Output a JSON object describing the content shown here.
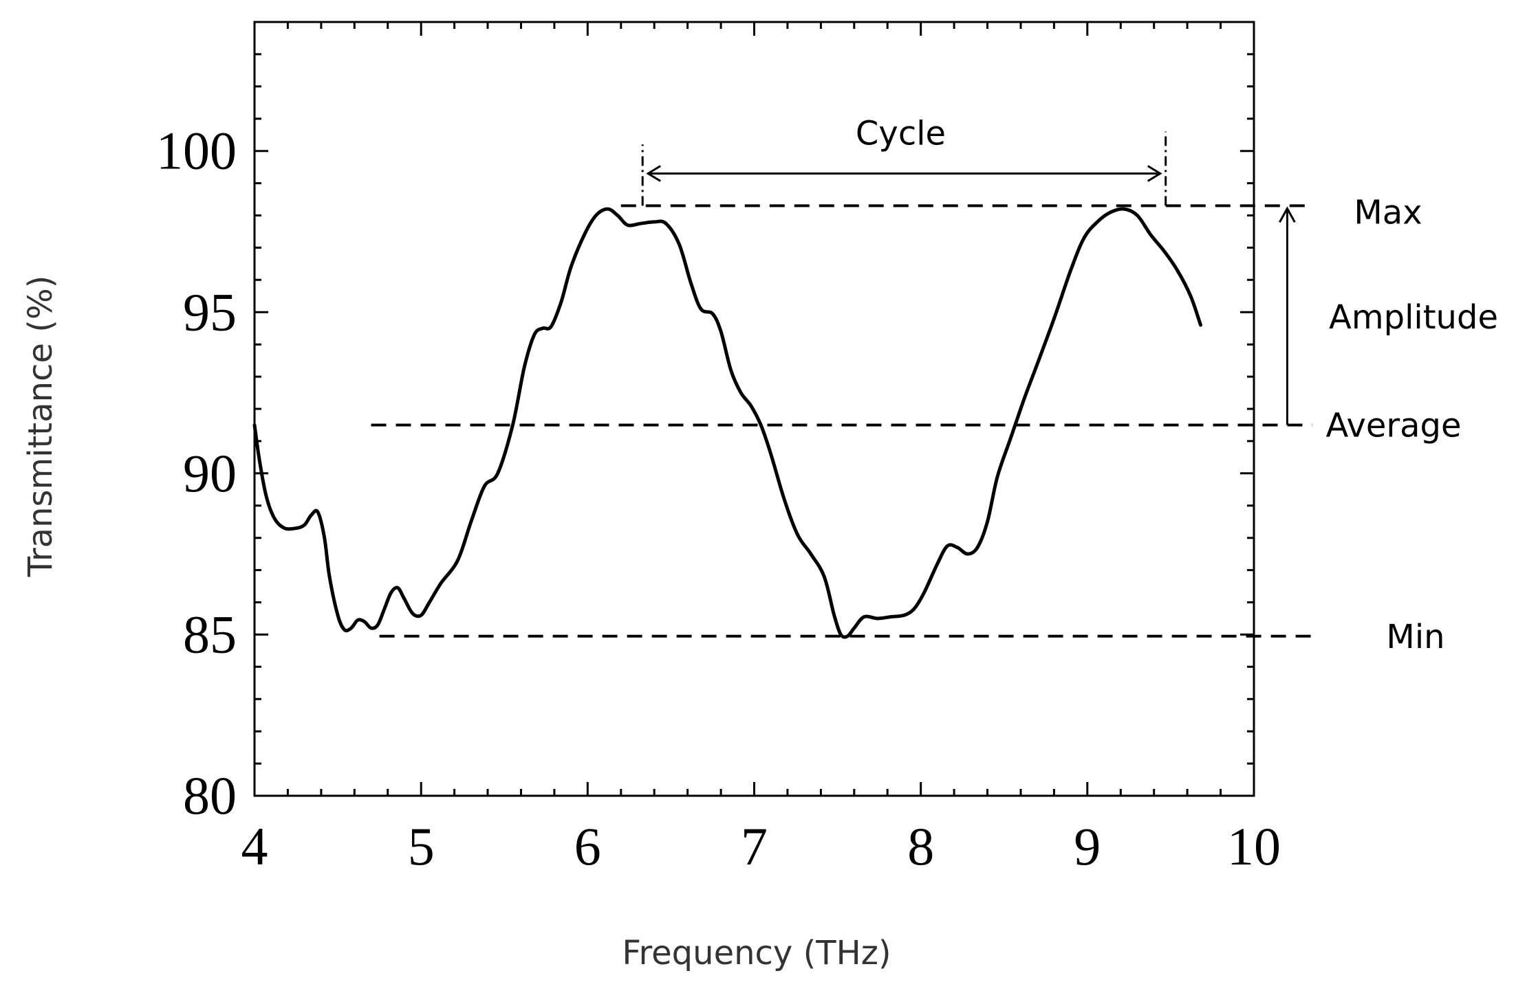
{
  "chart_data": {
    "type": "line",
    "title": "",
    "xlabel": "Frequency (THz)",
    "ylabel": "Transmittance (%)",
    "xlim": [
      4,
      10
    ],
    "ylim": [
      80,
      104
    ],
    "grid": false,
    "legend": "none",
    "x_ticks": [
      4,
      5,
      6,
      7,
      8,
      9,
      10
    ],
    "y_ticks": [
      80,
      85,
      90,
      95,
      100
    ],
    "x_minor_step": 0.2,
    "y_minor_step": 1,
    "series": [
      {
        "color": "#000000",
        "points": [
          [
            4.0,
            91.5
          ],
          [
            4.03,
            90.4
          ],
          [
            4.07,
            89.3
          ],
          [
            4.12,
            88.6
          ],
          [
            4.18,
            88.3
          ],
          [
            4.25,
            88.3
          ],
          [
            4.3,
            88.4
          ],
          [
            4.34,
            88.7
          ],
          [
            4.38,
            88.8
          ],
          [
            4.42,
            88.0
          ],
          [
            4.45,
            86.8
          ],
          [
            4.5,
            85.6
          ],
          [
            4.54,
            85.15
          ],
          [
            4.58,
            85.2
          ],
          [
            4.62,
            85.45
          ],
          [
            4.66,
            85.4
          ],
          [
            4.7,
            85.2
          ],
          [
            4.74,
            85.3
          ],
          [
            4.78,
            85.8
          ],
          [
            4.82,
            86.3
          ],
          [
            4.86,
            86.45
          ],
          [
            4.9,
            86.1
          ],
          [
            4.95,
            85.65
          ],
          [
            5.0,
            85.6
          ],
          [
            5.05,
            86.0
          ],
          [
            5.12,
            86.6
          ],
          [
            5.22,
            87.3
          ],
          [
            5.3,
            88.5
          ],
          [
            5.38,
            89.6
          ],
          [
            5.46,
            90.0
          ],
          [
            5.55,
            91.5
          ],
          [
            5.62,
            93.3
          ],
          [
            5.68,
            94.3
          ],
          [
            5.73,
            94.5
          ],
          [
            5.78,
            94.55
          ],
          [
            5.84,
            95.3
          ],
          [
            5.9,
            96.4
          ],
          [
            5.98,
            97.4
          ],
          [
            6.05,
            98.0
          ],
          [
            6.12,
            98.2
          ],
          [
            6.18,
            98.0
          ],
          [
            6.24,
            97.7
          ],
          [
            6.32,
            97.75
          ],
          [
            6.4,
            97.8
          ],
          [
            6.47,
            97.75
          ],
          [
            6.55,
            97.1
          ],
          [
            6.62,
            95.9
          ],
          [
            6.68,
            95.1
          ],
          [
            6.75,
            94.95
          ],
          [
            6.8,
            94.4
          ],
          [
            6.86,
            93.2
          ],
          [
            6.92,
            92.5
          ],
          [
            6.98,
            92.1
          ],
          [
            7.04,
            91.5
          ],
          [
            7.1,
            90.6
          ],
          [
            7.18,
            89.2
          ],
          [
            7.26,
            88.1
          ],
          [
            7.34,
            87.5
          ],
          [
            7.42,
            86.8
          ],
          [
            7.48,
            85.6
          ],
          [
            7.52,
            85.0
          ],
          [
            7.56,
            84.95
          ],
          [
            7.6,
            85.2
          ],
          [
            7.66,
            85.55
          ],
          [
            7.74,
            85.5
          ],
          [
            7.82,
            85.55
          ],
          [
            7.9,
            85.6
          ],
          [
            7.96,
            85.8
          ],
          [
            8.02,
            86.3
          ],
          [
            8.1,
            87.2
          ],
          [
            8.16,
            87.75
          ],
          [
            8.22,
            87.7
          ],
          [
            8.28,
            87.5
          ],
          [
            8.34,
            87.7
          ],
          [
            8.4,
            88.5
          ],
          [
            8.46,
            89.9
          ],
          [
            8.54,
            91.1
          ],
          [
            8.62,
            92.3
          ],
          [
            8.7,
            93.4
          ],
          [
            8.8,
            94.8
          ],
          [
            8.9,
            96.3
          ],
          [
            8.98,
            97.3
          ],
          [
            9.06,
            97.8
          ],
          [
            9.14,
            98.1
          ],
          [
            9.22,
            98.2
          ],
          [
            9.3,
            98.0
          ],
          [
            9.38,
            97.4
          ],
          [
            9.46,
            96.9
          ],
          [
            9.54,
            96.3
          ],
          [
            9.62,
            95.5
          ],
          [
            9.68,
            94.6
          ]
        ]
      }
    ],
    "reference_lines": [
      {
        "label": "Max",
        "y": 98.3,
        "x_from": 6.2,
        "x_to": 10.35
      },
      {
        "label": "Average",
        "y": 91.5,
        "x_from": 4.7,
        "x_to": 10.35
      },
      {
        "label": "Min",
        "y": 84.95,
        "x_from": 4.75,
        "x_to": 10.35
      }
    ],
    "cycle": {
      "label": "Cycle",
      "x_start": 6.33,
      "x_end": 9.47,
      "y": 99.3
    },
    "amplitude": {
      "label": "Amplitude",
      "x": 10.2,
      "y_from": 91.5,
      "y_to": 98.3
    }
  }
}
